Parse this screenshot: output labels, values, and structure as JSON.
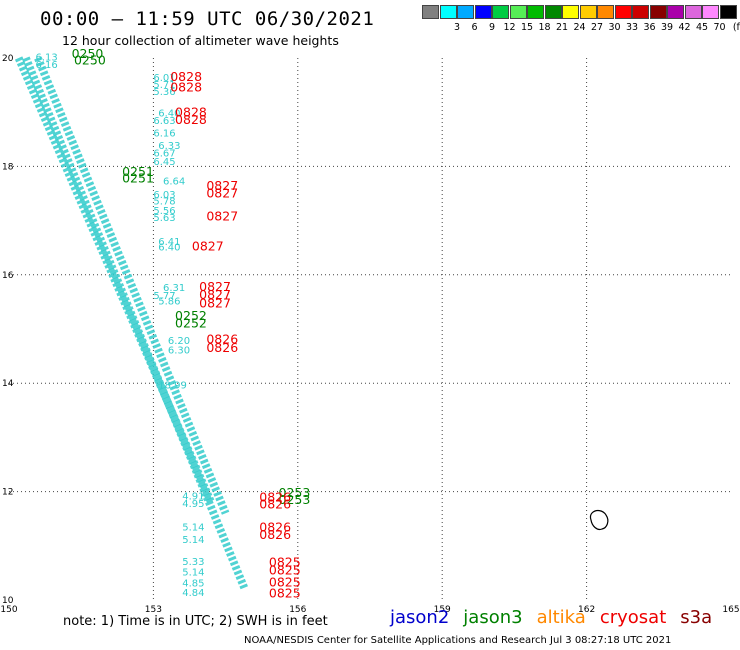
{
  "header": {
    "title": "00:00 – 11:59 UTC 06/30/2021",
    "subtitle": "12 hour collection of altimeter wave heights"
  },
  "legend": {
    "unit_label": "(ft)",
    "bins": [
      {
        "label": "",
        "color": "#808080"
      },
      {
        "label": "3",
        "color": "#00ffff"
      },
      {
        "label": "6",
        "color": "#00aaff"
      },
      {
        "label": "9",
        "color": "#0000ff"
      },
      {
        "label": "12",
        "color": "#00cc44"
      },
      {
        "label": "15",
        "color": "#55ee55"
      },
      {
        "label": "18",
        "color": "#00bb00"
      },
      {
        "label": "21",
        "color": "#008800"
      },
      {
        "label": "24",
        "color": "#ffff00"
      },
      {
        "label": "27",
        "color": "#ffcc00"
      },
      {
        "label": "30",
        "color": "#ff8800"
      },
      {
        "label": "33",
        "color": "#ff0000"
      },
      {
        "label": "36",
        "color": "#cc0000"
      },
      {
        "label": "39",
        "color": "#880000"
      },
      {
        "label": "42",
        "color": "#aa00aa"
      },
      {
        "label": "45",
        "color": "#dd66dd"
      },
      {
        "label": "70",
        "color": "#ff88ff"
      },
      {
        "label": "",
        "color": "#000000"
      }
    ]
  },
  "map": {
    "lon_ticks": [
      "150",
      "153",
      "156",
      "159",
      "162",
      "165"
    ],
    "lat_ticks": [
      "10",
      "12",
      "14",
      "16",
      "18",
      "20"
    ],
    "lon_range": [
      150,
      165
    ],
    "lat_range": [
      10,
      20
    ],
    "colors": {
      "swh": "#33cccc",
      "jason3": "#008000",
      "cryosat": "#ee0000",
      "grid": "#444444"
    },
    "tracks": [
      {
        "name": "track-a",
        "lon_start": 150.6,
        "lat_start": 20.0,
        "lon_end": 154.5,
        "lat_end": 11.6
      },
      {
        "name": "track-b",
        "lon_start": 150.35,
        "lat_start": 20.0,
        "lon_end": 154.9,
        "lat_end": 10.2
      },
      {
        "name": "track-c",
        "lon_start": 150.2,
        "lat_start": 20.0,
        "lon_end": 154.2,
        "lat_end": 11.8
      }
    ],
    "swh_labels": [
      {
        "text": "6.13",
        "lon": 150.55,
        "lat": 19.95
      },
      {
        "text": "6.16",
        "lon": 150.55,
        "lat": 19.82
      },
      {
        "text": "6.01",
        "lon": 153.0,
        "lat": 19.58
      },
      {
        "text": "5.71",
        "lon": 153.0,
        "lat": 19.45
      },
      {
        "text": "5.36",
        "lon": 153.0,
        "lat": 19.32
      },
      {
        "text": "6.40",
        "lon": 153.1,
        "lat": 18.92
      },
      {
        "text": "6.63",
        "lon": 153.0,
        "lat": 18.78
      },
      {
        "text": "6.16",
        "lon": 153.0,
        "lat": 18.55
      },
      {
        "text": "6.33",
        "lon": 153.1,
        "lat": 18.32
      },
      {
        "text": "6.67",
        "lon": 153.0,
        "lat": 18.18
      },
      {
        "text": "6.45",
        "lon": 153.0,
        "lat": 18.03
      },
      {
        "text": "6.64",
        "lon": 153.2,
        "lat": 17.67
      },
      {
        "text": "6.03",
        "lon": 153.0,
        "lat": 17.42
      },
      {
        "text": "5.78",
        "lon": 153.0,
        "lat": 17.3
      },
      {
        "text": "5.56",
        "lon": 153.0,
        "lat": 17.12
      },
      {
        "text": "5.63",
        "lon": 153.0,
        "lat": 16.99
      },
      {
        "text": "6.41",
        "lon": 153.1,
        "lat": 16.55
      },
      {
        "text": "6.40",
        "lon": 153.1,
        "lat": 16.45
      },
      {
        "text": "6.31",
        "lon": 153.2,
        "lat": 15.7
      },
      {
        "text": "5.77",
        "lon": 153.0,
        "lat": 15.55
      },
      {
        "text": "5.86",
        "lon": 153.1,
        "lat": 15.45
      },
      {
        "text": "6.20",
        "lon": 153.3,
        "lat": 14.72
      },
      {
        "text": "6.30",
        "lon": 153.3,
        "lat": 14.55
      },
      {
        "text": "18.99",
        "lon": 153.1,
        "lat": 13.9
      },
      {
        "text": "4.91",
        "lon": 153.6,
        "lat": 11.85
      },
      {
        "text": "4.95",
        "lon": 153.6,
        "lat": 11.72
      },
      {
        "text": "5.14",
        "lon": 153.6,
        "lat": 11.28
      },
      {
        "text": "5.14",
        "lon": 153.6,
        "lat": 11.05
      },
      {
        "text": "5.33",
        "lon": 153.6,
        "lat": 10.65
      },
      {
        "text": "5.14",
        "lon": 153.6,
        "lat": 10.45
      },
      {
        "text": "4.85",
        "lon": 153.6,
        "lat": 10.25
      },
      {
        "text": "4.84",
        "lon": 153.6,
        "lat": 10.07
      }
    ],
    "jason3_labels": [
      {
        "text": "0250",
        "lon": 151.3,
        "lat": 20.0
      },
      {
        "text": "0250",
        "lon": 151.35,
        "lat": 19.88
      },
      {
        "text": "0251",
        "lon": 152.35,
        "lat": 17.82
      },
      {
        "text": "0251",
        "lon": 152.35,
        "lat": 17.7
      },
      {
        "text": "0252",
        "lon": 153.45,
        "lat": 15.17
      },
      {
        "text": "0252",
        "lon": 153.45,
        "lat": 15.03
      },
      {
        "text": "0253",
        "lon": 155.6,
        "lat": 11.9
      },
      {
        "text": "0253",
        "lon": 155.6,
        "lat": 11.77
      }
    ],
    "cryosat_labels": [
      {
        "text": "0828",
        "lon": 153.35,
        "lat": 19.58
      },
      {
        "text": "0828",
        "lon": 153.35,
        "lat": 19.38
      },
      {
        "text": "0828",
        "lon": 153.45,
        "lat": 18.92
      },
      {
        "text": "0828",
        "lon": 153.45,
        "lat": 18.78
      },
      {
        "text": "0827",
        "lon": 154.1,
        "lat": 17.56
      },
      {
        "text": "0827",
        "lon": 154.1,
        "lat": 17.43
      },
      {
        "text": "0827",
        "lon": 154.1,
        "lat": 17.0
      },
      {
        "text": "0827",
        "lon": 153.8,
        "lat": 16.45
      },
      {
        "text": "0827",
        "lon": 153.95,
        "lat": 15.7
      },
      {
        "text": "0827",
        "lon": 153.95,
        "lat": 15.55
      },
      {
        "text": "0827",
        "lon": 153.95,
        "lat": 15.4
      },
      {
        "text": "0826",
        "lon": 154.1,
        "lat": 14.73
      },
      {
        "text": "0826",
        "lon": 154.1,
        "lat": 14.58
      },
      {
        "text": "0826",
        "lon": 155.2,
        "lat": 11.82
      },
      {
        "text": "0826",
        "lon": 155.2,
        "lat": 11.69
      },
      {
        "text": "0826",
        "lon": 155.2,
        "lat": 11.26
      },
      {
        "text": "0826",
        "lon": 155.2,
        "lat": 11.13
      },
      {
        "text": "0825",
        "lon": 155.4,
        "lat": 10.62
      },
      {
        "text": "0825",
        "lon": 155.4,
        "lat": 10.47
      },
      {
        "text": "0825",
        "lon": 155.4,
        "lat": 10.25
      },
      {
        "text": "0825",
        "lon": 155.4,
        "lat": 10.05
      }
    ]
  },
  "footer": {
    "note": "note:  1) Time is in UTC;  2) SWH is in feet",
    "satellites": [
      {
        "label": "jason2",
        "color": "#0000cc"
      },
      {
        "label": "jason3",
        "color": "#008000"
      },
      {
        "label": "altika",
        "color": "#ff8800"
      },
      {
        "label": "cryosat",
        "color": "#ee0000"
      },
      {
        "label": "s3a",
        "color": "#880000"
      }
    ],
    "credit": "NOAA/NESDIS Center for Satellite Applications and Research    Jul  3 08:27:18 UTC 2021"
  }
}
